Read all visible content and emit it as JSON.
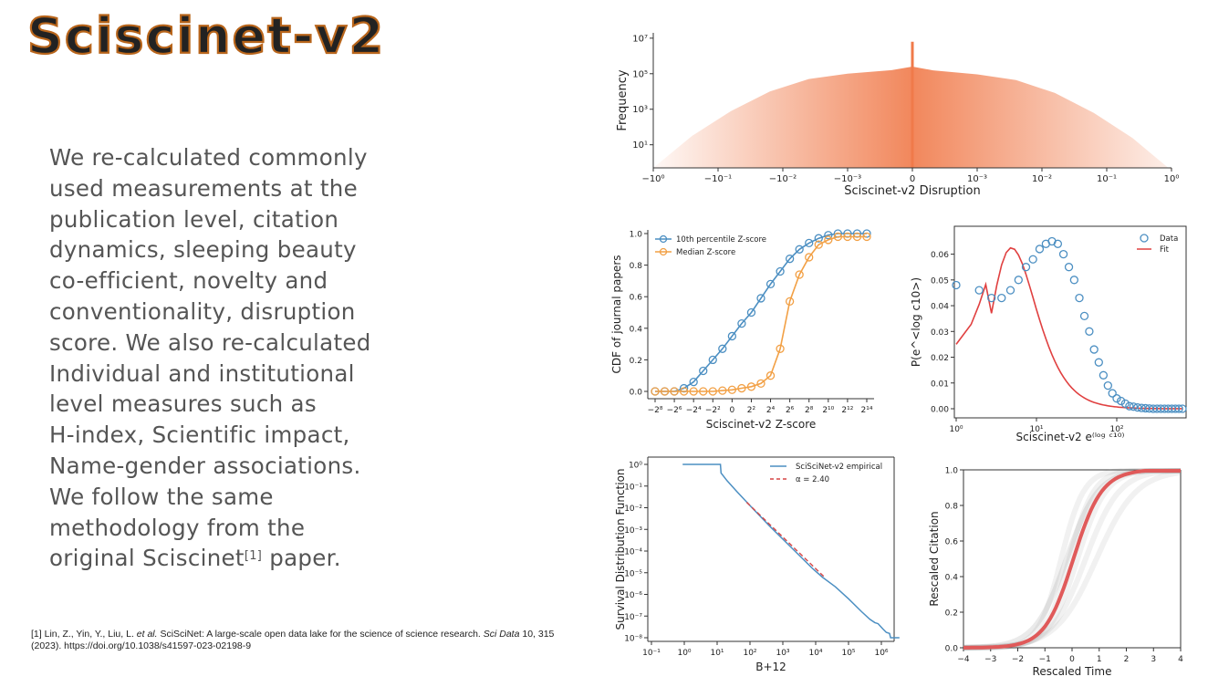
{
  "slide": {
    "title": "Sciscinet-v2",
    "title_color": "#B8651B",
    "body_lines": [
      "We re-calculated commonly",
      "used measurements at the",
      "publication level, citation",
      "dynamics, sleeping beauty",
      "co-efficient, novelty and",
      "conventionality, disruption",
      "score. We also re-calculated",
      "Individual and institutional",
      "level measures such as",
      "H-index, Scientific impact,",
      "Name-gender associations.",
      "We follow the same",
      "methodology from the",
      "original Sciscinet"
    ],
    "body_ref_sup": "[1]",
    "body_tail": " paper.",
    "reference": {
      "number": "[1]",
      "authors": " Lin, Z., Yin, Y., Liu, L. ",
      "etal": "et al.",
      "title": " SciSciNet: A large-scale open data lake for the science of science research. ",
      "journal": "Sci Data",
      "rest": " 10, 315 (2023). https://doi.org/10.1038/s41597-023-02198-9"
    }
  },
  "chart_data": [
    {
      "type": "area",
      "id": "disruption-hist",
      "xlabel": "Sciscinet-v2 Disruption",
      "ylabel": "Frequency",
      "x_ticks": [
        "−10⁰",
        "−10⁻¹",
        "−10⁻²",
        "−10⁻³",
        "0",
        "10⁻³",
        "10⁻²",
        "10⁻¹",
        "10⁰"
      ],
      "y_ticks": [
        "10¹",
        "10³",
        "10⁵",
        "10⁷"
      ],
      "color": "#F07A4A",
      "spike_at": "0",
      "profile_log10": [
        [
          0,
          -0.3
        ],
        [
          0.15,
          1.5
        ],
        [
          0.3,
          2.9
        ],
        [
          0.45,
          4.0
        ],
        [
          0.6,
          4.7
        ],
        [
          0.75,
          5.0
        ],
        [
          0.92,
          5.2
        ],
        [
          1.0,
          5.4
        ]
      ],
      "spike_log10": 6.8
    },
    {
      "type": "line",
      "id": "zscore-cdf",
      "xlabel": "Sciscinet-v2 Z-score",
      "ylabel": "CDF of journal papers",
      "x_ticks": [
        "−2⁸",
        "−2⁶",
        "−2⁴",
        "−2²",
        "0",
        "2²",
        "2⁴",
        "2⁶",
        "2⁸",
        "2¹⁰",
        "2¹²",
        "2¹⁴"
      ],
      "y_ticks": [
        "0.0",
        "0.2",
        "0.4",
        "0.6",
        "0.8",
        "1.0"
      ],
      "ylim": [
        0,
        1
      ],
      "series": [
        {
          "name": "10th percentile Z-score",
          "color": "#4C8FC2",
          "values": [
            0.0,
            0.0,
            0.0,
            0.02,
            0.06,
            0.13,
            0.2,
            0.27,
            0.35,
            0.43,
            0.5,
            0.59,
            0.68,
            0.76,
            0.84,
            0.9,
            0.94,
            0.97,
            0.99,
            1.0,
            1.0,
            1.0,
            1.0
          ]
        },
        {
          "name": "Median Z-score",
          "color": "#F2A045",
          "values": [
            0.0,
            0.0,
            0.0,
            0.0,
            0.0,
            0.0,
            0.0,
            0.005,
            0.01,
            0.02,
            0.03,
            0.05,
            0.1,
            0.27,
            0.57,
            0.74,
            0.85,
            0.93,
            0.96,
            0.98,
            0.98,
            0.98,
            0.98
          ]
        }
      ]
    },
    {
      "type": "scatter",
      "id": "log-citation-fit",
      "xlabel": "Sciscinet-v2 e⁽ˡᵒᵍ ᶜ¹⁰⁾",
      "ylabel": "P(e^<log c10>)",
      "x_ticks": [
        "10⁰",
        "10¹",
        "10²"
      ],
      "y_ticks": [
        "0.00",
        "0.01",
        "0.02",
        "0.03",
        "0.04",
        "0.05",
        "0.06"
      ],
      "ylim": [
        0,
        0.068
      ],
      "series": [
        {
          "name": "Data",
          "color": "#4C8FC2",
          "values": [
            0.048,
            0.046,
            0.043,
            0.043,
            0.046,
            0.05,
            0.055,
            0.058,
            0.062,
            0.064,
            0.065,
            0.064,
            0.06,
            0.055,
            0.05,
            0.043,
            0.036,
            0.03,
            0.023,
            0.018,
            0.013,
            0.009,
            0.006,
            0.004,
            0.003,
            0.002,
            0.001,
            0.0008,
            0.0005,
            0.0003,
            0.0002,
            0.0001,
            0.0,
            0.0,
            0.0,
            0.0,
            0.0,
            0.0,
            0.0,
            0.0,
            0.0
          ]
        },
        {
          "name": "Fit",
          "color": "#E04040"
        }
      ]
    },
    {
      "type": "line",
      "id": "survival-dist",
      "xlabel": "B+12",
      "ylabel": "Survival Distribution Function",
      "x_ticks": [
        "10⁻¹",
        "10⁰",
        "10¹",
        "10²",
        "10³",
        "10⁴",
        "10⁵",
        "10⁶"
      ],
      "y_ticks": [
        "10⁰",
        "10⁻¹",
        "10⁻²",
        "10⁻³",
        "10⁻⁴",
        "10⁻⁵",
        "10⁻⁶",
        "10⁻⁷",
        "10⁻⁸"
      ],
      "series": [
        {
          "name": "SciSciNet-v2 empirical",
          "color": "#4C8FC2"
        },
        {
          "name": "α = 2.40",
          "color": "#D64545",
          "dashed": true
        }
      ]
    },
    {
      "type": "line",
      "id": "rescaled-citation",
      "xlabel": "Rescaled Time",
      "ylabel": "Rescaled Citation",
      "x_ticks": [
        "−4",
        "−3",
        "−2",
        "−1",
        "0",
        "1",
        "2",
        "3",
        "4"
      ],
      "y_ticks": [
        "0.0",
        "0.2",
        "0.4",
        "0.6",
        "0.8",
        "1.0"
      ],
      "xlim": [
        -4,
        4
      ],
      "ylim": [
        0,
        1
      ],
      "series": [
        {
          "color": "#E05A5A"
        }
      ]
    }
  ]
}
